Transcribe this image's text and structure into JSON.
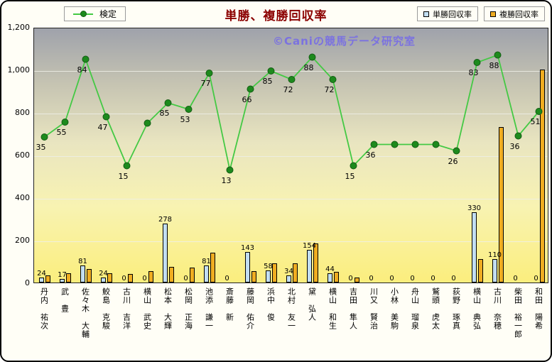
{
  "header": {
    "title": "単勝、複勝回収率",
    "watermark": "©Caniの競馬データ研究室"
  },
  "legend": {
    "line": "検定",
    "bar1": "単勝回収率",
    "bar2": "複勝回収率"
  },
  "colors": {
    "title": "#8b0000",
    "line": "#44c944",
    "marker": "#1d8a1d",
    "bar_tansho": "#c2def2",
    "bar_fukusho": "#f0ad21",
    "watermark": "#7b72e0",
    "plot_gradient_top": "#9fa2ab",
    "plot_gradient_bottom": "#fbee7d"
  },
  "chart_data": {
    "type": "bar",
    "subtype": "combo-bar-line",
    "title": "単勝、複勝回収率",
    "legend_position": "top",
    "grid": true,
    "categories": [
      "丹内　祐次",
      "武　豊",
      "佐々木　大輔",
      "鮫島　克駿",
      "古川　吉洋",
      "横山　武史",
      "松本　大輝",
      "松岡　正海",
      "池添　謙一",
      "斎藤　新",
      "藤岡　佑介",
      "浜中　俊",
      "北村　友一",
      "黛　弘人",
      "横山　和生",
      "吉田　隼人",
      "川又　賢治",
      "小林　美駒",
      "舟山　瑠泉",
      "鷲頭　虎太",
      "荻野　琢真",
      "横山　典弘",
      "古川　奈穂",
      "柴田　裕一郎",
      "和田　陽希"
    ],
    "y_axis": {
      "min": 0,
      "max": 1200,
      "step": 200,
      "tick_labels": [
        "0",
        "200",
        "400",
        "600",
        "800",
        "1,000",
        "1,200"
      ]
    },
    "series": [
      {
        "name": "単勝回収率",
        "type": "bar",
        "color": "#c2def2",
        "data_labels": true,
        "values": [
          24,
          17,
          81,
          24,
          0,
          0,
          278,
          0,
          81,
          0,
          143,
          58,
          34,
          154,
          44,
          0,
          0,
          0,
          0,
          0,
          0,
          330,
          110,
          0,
          0
        ]
      },
      {
        "name": "複勝回収率",
        "type": "bar",
        "color": "#f0ad21",
        "data_labels": false,
        "estimated_from_pixels": true,
        "values": [
          35,
          45,
          65,
          45,
          40,
          55,
          75,
          70,
          140,
          0,
          55,
          90,
          90,
          185,
          50,
          25,
          0,
          0,
          0,
          0,
          0,
          110,
          730,
          0,
          1000
        ]
      },
      {
        "name": "検定",
        "type": "line",
        "color": "#44c944",
        "point_labels": [
          "35",
          "55",
          "84",
          "47",
          "15",
          null,
          "85",
          "53",
          "77",
          "13",
          "66",
          "85",
          "72",
          "88",
          "72",
          "15",
          "36",
          null,
          null,
          null,
          "26",
          "83",
          "88",
          "36",
          "51"
        ],
        "plot_values_left_axis": [
          690,
          760,
          1055,
          785,
          555,
          755,
          850,
          820,
          990,
          535,
          915,
          1000,
          960,
          1065,
          960,
          555,
          655,
          655,
          655,
          655,
          625,
          1040,
          1075,
          695,
          810
        ]
      }
    ]
  }
}
